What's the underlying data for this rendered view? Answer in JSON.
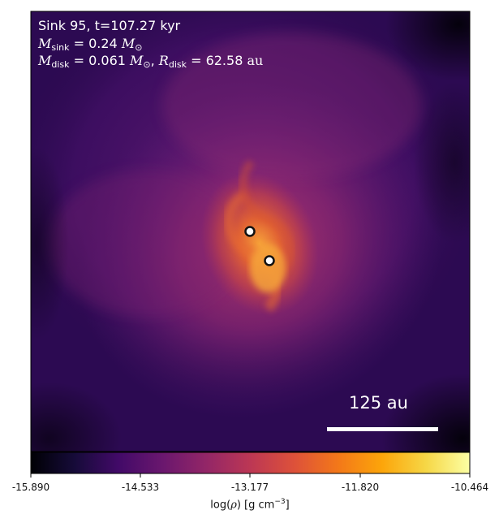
{
  "annotations": {
    "title": "Sink 95, t=107.27 kyr",
    "msink_symbol": "M",
    "msink_sub": "sink",
    "msink_value": "= 0.24",
    "msun_symbol": "M",
    "msun_sub": "⊙",
    "mdisk_symbol": "M",
    "mdisk_sub": "disk",
    "mdisk_value": "= 0.061",
    "rdisk_symbol": "R",
    "rdisk_sub": "disk",
    "rdisk_value": "= 62.58",
    "rdisk_unit": "au"
  },
  "scale_bar": {
    "label": "125 au"
  },
  "colorbar": {
    "tick_labels": [
      "-15.890",
      "-14.533",
      "-13.177",
      "-11.820",
      "-10.464"
    ],
    "label_prefix": "log(",
    "label_rho": "ρ",
    "label_mid": ") [g cm",
    "label_exp": "−3",
    "label_suffix": "]",
    "colormap": "inferno"
  },
  "sinks": {
    "count": 2,
    "marker": "white-circle-black-outline"
  },
  "colors": {
    "background_dark": "#1a0838",
    "mid_purple": "#5e1a78",
    "disk_orange": "#f08a2e",
    "marker_fill": "#ffffff",
    "marker_edge": "#111111"
  }
}
